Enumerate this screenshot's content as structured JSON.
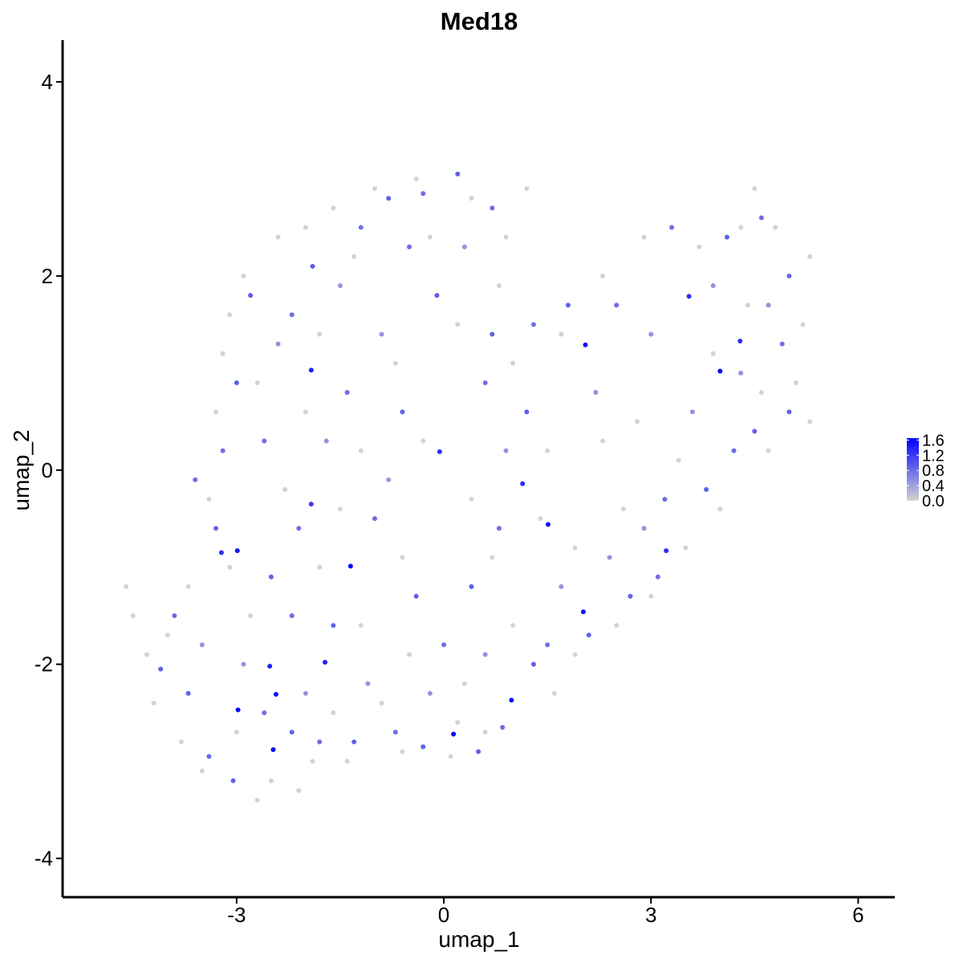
{
  "chart_data": {
    "type": "scatter",
    "title": "Med18",
    "x_label": "umap_1",
    "y_label": "umap_2",
    "xlim": [
      -5.52,
      6.53
    ],
    "ylim": [
      -4.4,
      4.43
    ],
    "xticks": [
      -3,
      0,
      3,
      6
    ],
    "yticks": [
      -4,
      -2,
      0,
      2,
      4
    ],
    "color_low": "#d3d3d3",
    "color_high": "#0000ff",
    "colorlim": [
      0,
      1.65
    ],
    "colorticks": [
      {
        "value": 0,
        "label": "0.0"
      },
      0.4,
      0.8,
      1.2,
      1.6
    ],
    "x": [
      -4.6,
      -4.5,
      -4.2,
      -3.8,
      -3.5,
      -2.7,
      -2.5,
      -1.9,
      -1.4,
      -0.6,
      0.1,
      0.6,
      1.6,
      1.9,
      2.5,
      3.0,
      3.5,
      3.4,
      4.0,
      4.7,
      5.1,
      5.2,
      5.3,
      4.8,
      4.5,
      4.3,
      3.7,
      2.9,
      2.3,
      1.7,
      1.0,
      1.2,
      0.9,
      0.4,
      -0.4,
      -1.0,
      -1.6,
      -2.0,
      -2.4,
      -2.9,
      -3.1,
      -3.2,
      -3.3,
      -3.4,
      -3.1,
      -3.7,
      -4.0,
      -2.8,
      -1.8,
      -1.2,
      -0.5,
      0.3,
      1.0,
      1.9,
      2.6,
      2.8,
      2.3,
      1.5,
      0.4,
      -0.3,
      -1.2,
      -2.0,
      -2.7,
      -1.8,
      -0.7,
      0.2,
      0.8,
      -0.2,
      -1.3,
      -2.3,
      -1.5,
      -0.6,
      0.7,
      1.4,
      3.9,
      4.4,
      4.6,
      5.3,
      -4.3,
      -3.0,
      -2.1,
      -1.6,
      -0.9,
      0.2,
      -3.5,
      -2.9,
      -2.0,
      -1.1,
      -0.2,
      0.6,
      1.7,
      2.4,
      2.9,
      3.6,
      4.3,
      4.7,
      3.9,
      3.0,
      2.2,
      0.9,
      -0.8,
      -1.7,
      -2.4,
      -1.5,
      -0.9,
      0.3,
      -4.1,
      -3.7,
      -3.4,
      -3.05,
      -2.6,
      -2.2,
      -1.8,
      -1.3,
      -0.7,
      -0.3,
      0.5,
      0.85,
      1.3,
      1.5,
      2.1,
      2.7,
      3.1,
      3.2,
      3.8,
      4.2,
      4.5,
      5.0,
      4.9,
      5.0,
      4.6,
      4.1,
      3.3,
      2.5,
      1.8,
      1.3,
      0.7,
      -0.1,
      -0.5,
      -0.8,
      -0.3,
      0.2,
      0.7,
      -1.2,
      -1.9,
      -2.2,
      -2.8,
      -3.0,
      -3.2,
      -3.6,
      -3.3,
      -3.9,
      -2.5,
      -2.1,
      -1.6,
      -1.0,
      -0.4,
      0.0,
      0.4,
      0.8,
      1.2,
      0.6,
      -0.6,
      -1.4,
      -2.6,
      -2.2,
      -1.92,
      -3.22,
      3.22,
      4.29,
      3.55,
      1.14,
      -0.06,
      -1.92,
      -1.72,
      -2.52,
      2.02,
      2.05,
      4.0,
      -2.47,
      -2.43,
      0.98,
      0.14,
      1.51,
      -1.35,
      -2.99,
      -2.98
    ],
    "y": [
      -1.2,
      -1.5,
      -2.4,
      -2.8,
      -3.1,
      -3.4,
      -3.2,
      -3.0,
      -3.0,
      -2.9,
      -2.95,
      -2.7,
      -2.3,
      -1.9,
      -1.6,
      -1.3,
      -0.8,
      0.1,
      -0.4,
      0.2,
      0.9,
      1.5,
      2.2,
      2.5,
      2.9,
      2.5,
      2.3,
      2.4,
      2.0,
      1.4,
      1.1,
      2.9,
      2.4,
      2.8,
      3.0,
      2.9,
      2.7,
      2.5,
      2.4,
      2.0,
      1.6,
      1.2,
      0.6,
      -0.3,
      -1.0,
      -1.2,
      -1.7,
      -1.5,
      -1.0,
      -1.6,
      -1.9,
      -2.2,
      -1.6,
      -0.8,
      -0.4,
      0.5,
      0.3,
      0.2,
      -0.3,
      0.3,
      0.2,
      0.6,
      0.9,
      1.4,
      1.1,
      1.5,
      1.9,
      2.4,
      2.2,
      -0.2,
      -0.4,
      -0.9,
      -0.9,
      -0.5,
      1.2,
      1.7,
      0.8,
      0.5,
      -1.9,
      -2.7,
      -3.3,
      -2.5,
      -2.4,
      -2.6,
      -1.8,
      -2.0,
      -2.3,
      -2.2,
      -2.3,
      -1.9,
      -1.2,
      -0.9,
      -0.6,
      0.6,
      1.0,
      1.7,
      1.9,
      1.4,
      0.8,
      0.2,
      -0.1,
      0.3,
      1.3,
      1.9,
      1.4,
      2.3,
      -2.05,
      -2.3,
      -2.95,
      -3.2,
      -2.5,
      -2.7,
      -2.8,
      -2.8,
      -2.7,
      -2.85,
      -2.9,
      -2.65,
      -2.0,
      -1.8,
      -1.7,
      -1.3,
      -1.1,
      -0.3,
      -0.2,
      0.2,
      0.4,
      0.6,
      1.3,
      2.0,
      2.6,
      2.4,
      2.5,
      1.7,
      1.7,
      1.5,
      1.4,
      1.8,
      2.3,
      2.8,
      2.85,
      3.05,
      2.7,
      2.5,
      2.1,
      1.6,
      1.8,
      0.9,
      0.2,
      -0.1,
      -0.6,
      -1.5,
      -1.1,
      -0.6,
      -1.6,
      -0.5,
      -1.3,
      -1.8,
      -1.2,
      -0.6,
      0.6,
      0.9,
      0.6,
      0.8,
      0.3,
      -1.5,
      -0.35,
      -0.85,
      -0.83,
      1.33,
      1.79,
      -0.14,
      0.19,
      1.03,
      -1.98,
      -2.02,
      -1.46,
      1.29,
      1.02,
      -2.88,
      -2.31,
      -2.37,
      -2.72,
      -0.56,
      -0.99,
      -0.83,
      -2.47
    ],
    "values": [
      0,
      0,
      0,
      0,
      0,
      0,
      0,
      0,
      0,
      0,
      0,
      0,
      0,
      0,
      0,
      0,
      0,
      0,
      0,
      0,
      0,
      0,
      0,
      0,
      0,
      0,
      0,
      0,
      0,
      0,
      0,
      0,
      0,
      0,
      0,
      0,
      0,
      0,
      0,
      0,
      0,
      0,
      0,
      0,
      0,
      0,
      0,
      0,
      0,
      0,
      0,
      0,
      0,
      0,
      0,
      0,
      0,
      0,
      0,
      0,
      0,
      0,
      0,
      0,
      0,
      0,
      0,
      0,
      0,
      0,
      0,
      0,
      0,
      0,
      0,
      0,
      0,
      0,
      0,
      0,
      0,
      0,
      0,
      0,
      0.5,
      0.5,
      0.5,
      0.5,
      0.5,
      0.5,
      0.5,
      0.5,
      0.5,
      0.5,
      0.5,
      0.5,
      0.5,
      0.5,
      0.5,
      0.5,
      0.5,
      0.5,
      0.5,
      0.5,
      0.5,
      0.5,
      0.9,
      0.9,
      0.8,
      0.9,
      0.8,
      0.9,
      0.8,
      0.9,
      0.8,
      0.9,
      0.9,
      0.8,
      0.9,
      0.8,
      0.9,
      0.9,
      0.8,
      0.8,
      0.9,
      0.8,
      0.9,
      0.9,
      0.8,
      0.9,
      0.8,
      0.9,
      0.8,
      0.8,
      0.9,
      0.8,
      0.9,
      0.9,
      0.8,
      0.9,
      0.8,
      0.9,
      0.8,
      0.8,
      0.9,
      0.8,
      0.9,
      0.9,
      0.8,
      0.8,
      0.9,
      0.8,
      0.9,
      0.8,
      0.9,
      0.8,
      0.9,
      0.8,
      0.9,
      0.8,
      0.9,
      0.8,
      0.9,
      0.8,
      0.8,
      0.8,
      1.2,
      1.3,
      1.3,
      1.3,
      1.3,
      1.3,
      1.3,
      1.4,
      1.4,
      1.4,
      1.5,
      1.5,
      1.6,
      1.6,
      1.5,
      1.6,
      1.6,
      1.5,
      1.6,
      1.5,
      1.6
    ]
  }
}
